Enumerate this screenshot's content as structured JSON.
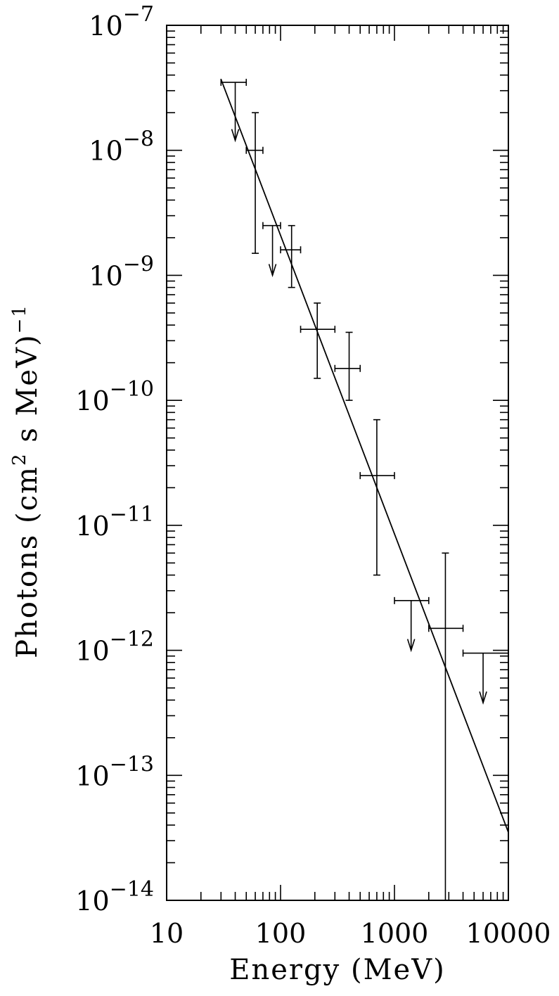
{
  "chart_data": {
    "type": "scatter",
    "title": "",
    "xlabel": "Energy (MeV)",
    "ylabel_base": "Photons (cm",
    "ylabel_sup": "2",
    "ylabel_mid": " s MeV)",
    "ylabel_sup2": "−1",
    "x_scale": "log",
    "y_scale": "log",
    "xlim": [
      10,
      10000
    ],
    "ylim": [
      1e-14,
      1e-07
    ],
    "x_ticks": [
      {
        "value": 10,
        "label": "10"
      },
      {
        "value": 100,
        "label": "100"
      },
      {
        "value": 1000,
        "label": "1000"
      },
      {
        "value": 10000,
        "label": "10000"
      }
    ],
    "y_ticks": [
      {
        "value": 1e-07,
        "base": "10",
        "exp": "−7"
      },
      {
        "value": 1e-08,
        "base": "10",
        "exp": "−8"
      },
      {
        "value": 1e-09,
        "base": "10",
        "exp": "−9"
      },
      {
        "value": 1e-10,
        "base": "10",
        "exp": "−10"
      },
      {
        "value": 1e-11,
        "base": "10",
        "exp": "−11"
      },
      {
        "value": 1e-12,
        "base": "10",
        "exp": "−12"
      },
      {
        "value": 1e-13,
        "base": "10",
        "exp": "−13"
      },
      {
        "value": 1e-14,
        "base": "10",
        "exp": "−14"
      }
    ],
    "grid": false,
    "measurements": [
      {
        "x": 60,
        "x_lo": 50,
        "x_hi": 70,
        "y": 1e-08,
        "y_lo": 1.5e-09,
        "y_hi": 2e-08
      },
      {
        "x": 125,
        "x_lo": 100,
        "x_hi": 150,
        "y": 1.6e-09,
        "y_lo": 8e-10,
        "y_hi": 2.5e-09
      },
      {
        "x": 210,
        "x_lo": 150,
        "x_hi": 300,
        "y": 3.7e-10,
        "y_lo": 1.5e-10,
        "y_hi": 6e-10
      },
      {
        "x": 400,
        "x_lo": 300,
        "x_hi": 500,
        "y": 1.8e-10,
        "y_lo": 1e-10,
        "y_hi": 3.5e-10
      },
      {
        "x": 700,
        "x_lo": 500,
        "x_hi": 1000,
        "y": 2.5e-11,
        "y_lo": 4e-12,
        "y_hi": 7e-11
      },
      {
        "x": 2800,
        "x_lo": 2000,
        "x_hi": 4000,
        "y": 1.5e-12,
        "y_lo": 1e-14,
        "y_hi": 6e-12
      }
    ],
    "upper_limits": [
      {
        "x": 40,
        "x_lo": 30,
        "x_hi": 50,
        "y": 3.5e-08,
        "arrow_to": 1.2e-08
      },
      {
        "x": 85,
        "x_lo": 70,
        "x_hi": 100,
        "y": 2.5e-09,
        "arrow_to": 1e-09
      },
      {
        "x": 1400,
        "x_lo": 1000,
        "x_hi": 2000,
        "y": 2.5e-12,
        "arrow_to": 1e-12
      },
      {
        "x": 6000,
        "x_lo": 4000,
        "x_hi": 10000,
        "y": 9.5e-13,
        "arrow_to": 3.8e-13
      }
    ],
    "fit_line": {
      "x": [
        30,
        10000
      ],
      "y": [
        3.7e-08,
        3.5e-14
      ]
    }
  }
}
